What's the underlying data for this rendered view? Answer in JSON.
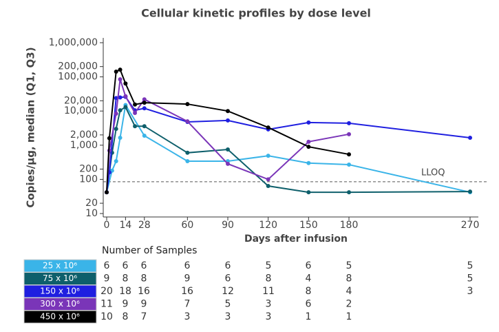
{
  "chart_data": {
    "type": "line",
    "title": "Cellular kinetic profiles by dose level",
    "x_label": "Days after infusion",
    "y_label": "Copies/µg, median (Q1, Q3)",
    "x": [
      0,
      2,
      4,
      7,
      10,
      14,
      21,
      28,
      60,
      90,
      120,
      150,
      180,
      270
    ],
    "xlim": [
      0,
      270
    ],
    "xticks": [
      0,
      14,
      28,
      60,
      90,
      120,
      150,
      180,
      270
    ],
    "ylim": [
      10,
      1000000
    ],
    "log_y": true,
    "yticks": [
      10,
      20,
      100,
      200,
      {
        "value": 1000,
        "label": "1,000"
      },
      {
        "value": 2000,
        "label": "2,000"
      },
      {
        "value": 10000,
        "label": "10,000"
      },
      {
        "value": 20000,
        "label": "20,000"
      },
      {
        "value": 100000,
        "label": "100,000"
      },
      {
        "value": 200000,
        "label": "200,000"
      },
      {
        "value": 1000000,
        "label": "1,000,000"
      }
    ],
    "reference_line": {
      "value": 85,
      "label": "LLOQ"
    },
    "series": [
      {
        "name": "25 x 10⁶",
        "color": "#3ab4e8",
        "values": [
          42,
          null,
          180,
          340,
          1650,
          15000,
          null,
          1900,
          340,
          340,
          490,
          300,
          270,
          42
        ]
      },
      {
        "name": "75 x 10⁶",
        "color": "#0e5f6b",
        "values": [
          42,
          null,
          600,
          3000,
          10500,
          13000,
          3600,
          3600,
          600,
          750,
          64,
          42,
          42,
          44
        ]
      },
      {
        "name": "150 x 10⁶",
        "color": "#1f1fe0",
        "values": [
          42,
          160,
          null,
          24000,
          25000,
          26000,
          10500,
          12000,
          4800,
          5300,
          2900,
          4600,
          4400,
          1650
        ]
      },
      {
        "name": "300 x 10⁶",
        "color": "#7a35b8",
        "values": [
          42,
          700,
          null,
          8400,
          85000,
          27000,
          8800,
          22000,
          5000,
          285,
          100,
          1260,
          2100,
          null
        ]
      },
      {
        "name": "450 x 10⁶",
        "color": "#000000",
        "values": [
          42,
          1600,
          null,
          142000,
          163000,
          64000,
          15500,
          17500,
          16000,
          10000,
          3300,
          900,
          540,
          null
        ]
      }
    ],
    "samples_table": {
      "title": "Number of Samples",
      "rows": [
        [
          6,
          6,
          6,
          6,
          6,
          5,
          6,
          5,
          5
        ],
        [
          9,
          8,
          8,
          9,
          6,
          8,
          4,
          8,
          5
        ],
        [
          20,
          18,
          16,
          16,
          12,
          11,
          8,
          4,
          3
        ],
        [
          11,
          9,
          9,
          7,
          5,
          3,
          6,
          2,
          null
        ],
        [
          10,
          8,
          7,
          3,
          3,
          3,
          1,
          1,
          null
        ]
      ]
    }
  }
}
